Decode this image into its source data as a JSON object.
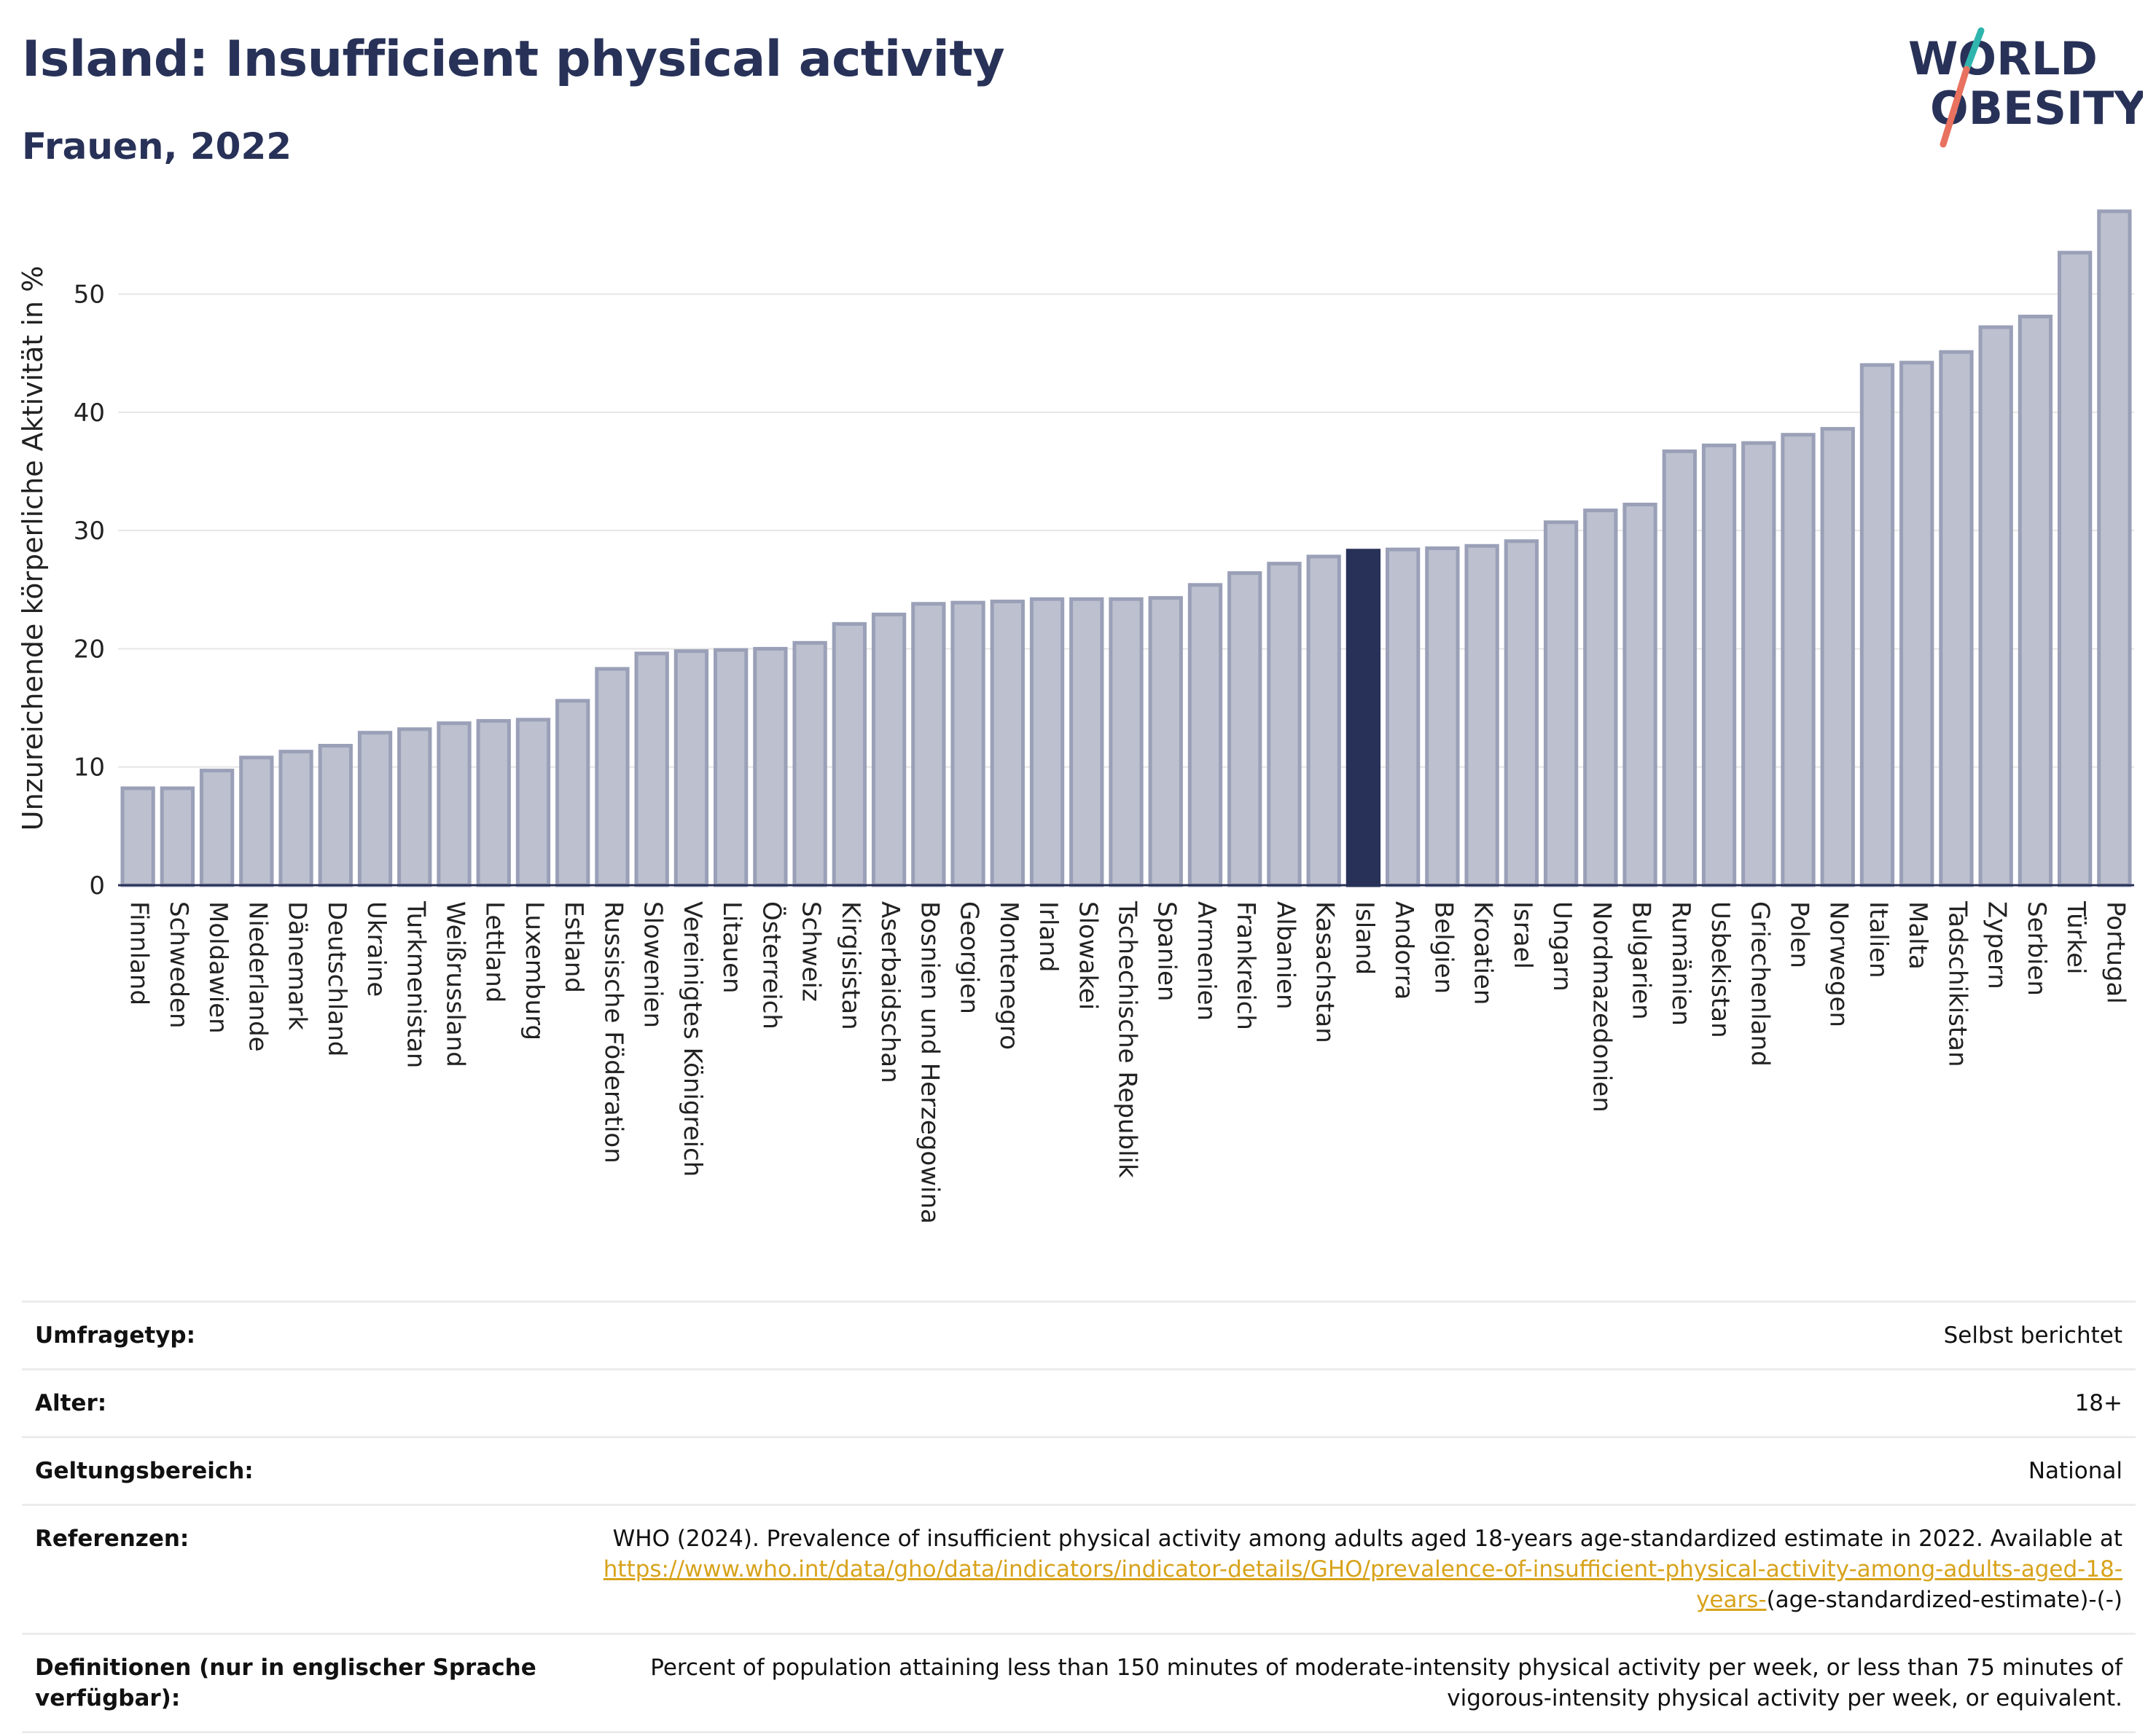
{
  "header": {
    "title": "Island: Insufficient physical activity",
    "subtitle": "Frauen, 2022"
  },
  "logo": {
    "line1": "WORLD",
    "line2": "OBESITY"
  },
  "colors": {
    "bar": "#bcc0cf",
    "bar_border": "#9aa0b7",
    "highlight": "#283258",
    "title": "#283258",
    "link": "#d8a31c"
  },
  "chart_data": {
    "type": "bar",
    "title": "Island: Insufficient physical activity",
    "subtitle": "Frauen, 2022",
    "ylabel": "Unzureichende körperliche Aktivität in %",
    "xlabel": "",
    "ylim": [
      0,
      57
    ],
    "yticks": [
      0,
      10,
      20,
      30,
      40,
      50
    ],
    "grid": true,
    "highlight": "Island",
    "categories": [
      "Finnland",
      "Schweden",
      "Moldawien",
      "Niederlande",
      "Dänemark",
      "Deutschland",
      "Ukraine",
      "Turkmenistan",
      "Weißrussland",
      "Lettland",
      "Luxemburg",
      "Estland",
      "Russische Föderation",
      "Slowenien",
      "Vereinigtes Königreich",
      "Litauen",
      "Österreich",
      "Schweiz",
      "Kirgisistan",
      "Aserbaidschan",
      "Bosnien und Herzegowina",
      "Georgien",
      "Montenegro",
      "Irland",
      "Slowakei",
      "Tschechische Republik",
      "Spanien",
      "Armenien",
      "Frankreich",
      "Albanien",
      "Kasachstan",
      "Island",
      "Andorra",
      "Belgien",
      "Kroatien",
      "Israel",
      "Ungarn",
      "Nordmazedonien",
      "Bulgarien",
      "Rumänien",
      "Usbekistan",
      "Griechenland",
      "Polen",
      "Norwegen",
      "Italien",
      "Malta",
      "Tadschikistan",
      "Zypern",
      "Serbien",
      "Türkei",
      "Portugal"
    ],
    "values": [
      8.2,
      8.2,
      9.7,
      10.8,
      11.3,
      11.8,
      12.9,
      13.2,
      13.7,
      13.9,
      14.0,
      15.6,
      18.3,
      19.6,
      19.8,
      19.9,
      20.0,
      20.5,
      22.1,
      22.9,
      23.8,
      23.9,
      24.0,
      24.2,
      24.2,
      24.2,
      24.3,
      25.4,
      26.4,
      27.2,
      27.8,
      28.3,
      28.4,
      28.5,
      28.7,
      29.1,
      30.7,
      31.7,
      32.2,
      36.7,
      37.2,
      37.4,
      38.1,
      38.6,
      44.0,
      44.2,
      45.1,
      47.2,
      48.1,
      53.5,
      57.0
    ]
  },
  "info": {
    "rows": [
      {
        "label": "Umfragetyp:",
        "value": "Selbst berichtet"
      },
      {
        "label": "Alter:",
        "value": "18+"
      },
      {
        "label": "Geltungsbereich:",
        "value": "National"
      }
    ],
    "references": {
      "label": "Referenzen:",
      "text": "WHO (2024). Prevalence of insufficient physical activity among adults aged 18-years age-standardized estimate in 2022. Available at",
      "link": "https://www.who.int/data/gho/data/indicators/indicator-details/GHO/prevalence-of-insufficient-physical-activity-among-adults-aged-18-years-",
      "suffix": "(age-standardized-estimate)-(-)"
    },
    "definitions": {
      "label": "Definitionen (nur in englischer Sprache verfügbar):",
      "text": "Percent of population attaining less than 150 minutes of moderate-intensity physical activity per week, or less than 75 minutes of vigorous-intensity physical activity per week, or equivalent."
    }
  }
}
